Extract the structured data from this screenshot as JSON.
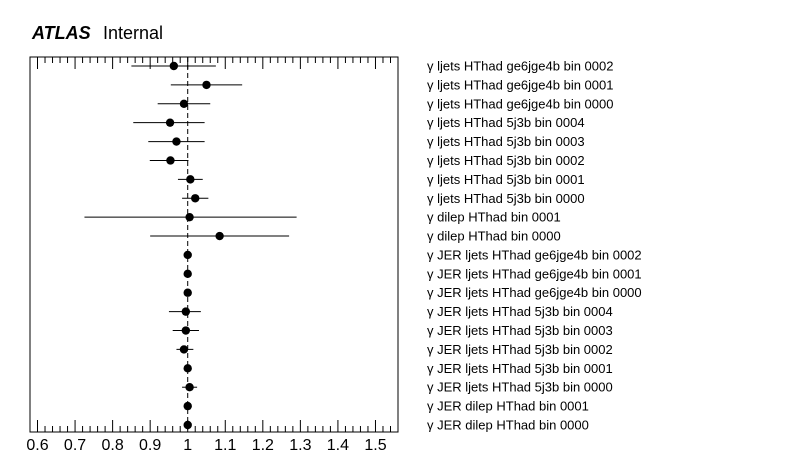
{
  "header": {
    "experiment": "ATLAS",
    "status": "Internal"
  },
  "chart_data": {
    "type": "scatter",
    "orientation": "horizontal-errorbar",
    "xlim": [
      0.58,
      1.56
    ],
    "x_ticks": [
      0.6,
      0.7,
      0.8,
      0.9,
      1,
      1.1,
      1.2,
      1.3,
      1.4,
      1.5
    ],
    "x_tick_labels": [
      "0.6",
      "0.7",
      "0.8",
      "0.9",
      "1",
      "1.1",
      "1.2",
      "1.3",
      "1.4",
      "1.5"
    ],
    "reference_line": 1,
    "points": [
      {
        "label": "γ ljets HThad ge6jge4b bin 0002",
        "value": 0.963,
        "err_low": 0.113,
        "err_high": 0.112
      },
      {
        "label": "γ ljets HThad ge6jge4b bin 0001",
        "value": 1.05,
        "err_low": 0.095,
        "err_high": 0.095
      },
      {
        "label": "γ ljets HThad ge6jge4b bin 0000",
        "value": 0.99,
        "err_low": 0.07,
        "err_high": 0.07
      },
      {
        "label": "γ ljets HThad 5j3b bin 0004",
        "value": 0.953,
        "err_low": 0.098,
        "err_high": 0.092
      },
      {
        "label": "γ ljets HThad 5j3b bin 0003",
        "value": 0.97,
        "err_low": 0.075,
        "err_high": 0.075
      },
      {
        "label": "γ ljets HThad 5j3b bin 0002",
        "value": 0.954,
        "err_low": 0.055,
        "err_high": 0.048
      },
      {
        "label": "γ ljets HThad 5j3b bin 0001",
        "value": 1.007,
        "err_low": 0.033,
        "err_high": 0.033
      },
      {
        "label": "γ ljets HThad 5j3b bin 0000",
        "value": 1.02,
        "err_low": 0.035,
        "err_high": 0.035
      },
      {
        "label": "γ dilep HThad bin 0001",
        "value": 1.005,
        "err_low": 0.28,
        "err_high": 0.285
      },
      {
        "label": "γ dilep HThad bin 0000",
        "value": 1.085,
        "err_low": 0.185,
        "err_high": 0.185
      },
      {
        "label": "γ JER ljets HThad ge6jge4b bin 0002",
        "value": 1.0,
        "err_low": 0.008,
        "err_high": 0.008
      },
      {
        "label": "γ JER ljets HThad ge6jge4b bin 0001",
        "value": 1.0,
        "err_low": 0.01,
        "err_high": 0.01
      },
      {
        "label": "γ JER ljets HThad ge6jge4b bin 0000",
        "value": 1.0,
        "err_low": 0.008,
        "err_high": 0.008
      },
      {
        "label": "γ JER ljets HThad 5j3b bin 0004",
        "value": 0.995,
        "err_low": 0.045,
        "err_high": 0.04
      },
      {
        "label": "γ JER ljets HThad 5j3b bin 0003",
        "value": 0.995,
        "err_low": 0.035,
        "err_high": 0.035
      },
      {
        "label": "γ JER ljets HThad 5j3b bin 0002",
        "value": 0.99,
        "err_low": 0.02,
        "err_high": 0.025
      },
      {
        "label": "γ JER ljets HThad 5j3b bin 0001",
        "value": 1.0,
        "err_low": 0.008,
        "err_high": 0.008
      },
      {
        "label": "γ JER ljets HThad 5j3b bin 0000",
        "value": 1.005,
        "err_low": 0.02,
        "err_high": 0.02
      },
      {
        "label": "γ JER dilep HThad bin 0001",
        "value": 1.0,
        "err_low": 0.005,
        "err_high": 0.005
      },
      {
        "label": "γ JER dilep HThad bin 0000",
        "value": 1.0,
        "err_low": 0.005,
        "err_high": 0.005
      }
    ]
  }
}
